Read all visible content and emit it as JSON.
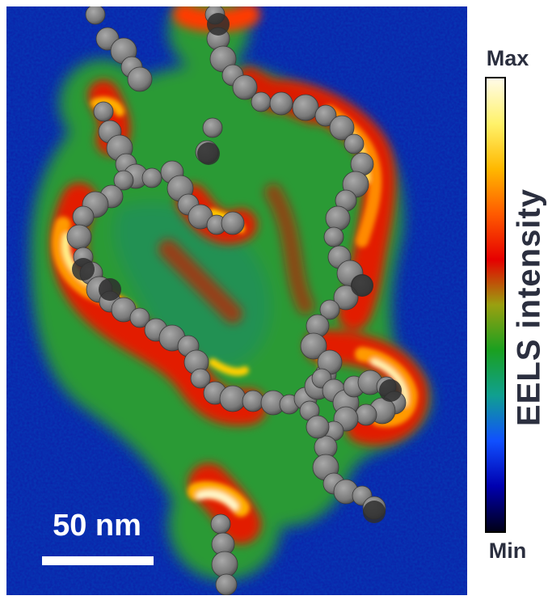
{
  "figure": {
    "scale_bar_label": "50 nm",
    "colorbar_title": "EELS intensity",
    "colorbar_max_label": "Max",
    "colorbar_min_label": "Min",
    "colorbar_colors": [
      "#fffbe8",
      "#fff26a",
      "#ffb800",
      "#ff5a00",
      "#e60000",
      "#9aa010",
      "#1aa020",
      "#10a090",
      "#1050ff",
      "#0000b0",
      "#000018"
    ],
    "map_colors": {
      "background_low": "#0a1a9e",
      "mid": "#1e9a3a",
      "high": "#e81e00",
      "hot": "#fff6c0"
    },
    "particle_color": "#8a8a8a"
  }
}
